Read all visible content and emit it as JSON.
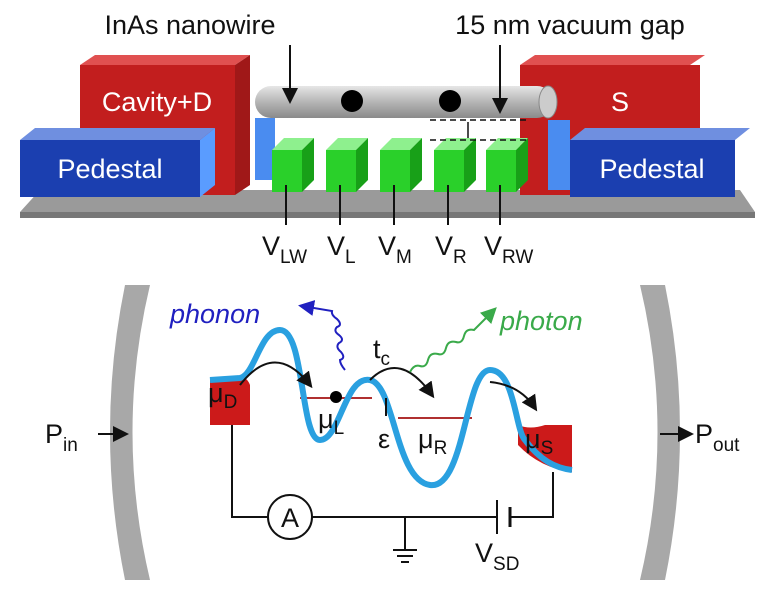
{
  "device": {
    "nanowire_label": "InAs nanowire",
    "gap_label": "15 nm vacuum gap",
    "left_contact": "Cavity+D",
    "right_contact": "S",
    "left_pedestal": "Pedestal",
    "right_pedestal": "Pedestal",
    "gates": [
      {
        "symbol": "V",
        "sub": "LW"
      },
      {
        "symbol": "V",
        "sub": "L"
      },
      {
        "symbol": "V",
        "sub": "M"
      },
      {
        "symbol": "V",
        "sub": "R"
      },
      {
        "symbol": "V",
        "sub": "RW"
      }
    ]
  },
  "circuit": {
    "phonon": "phonon",
    "photon": "photon",
    "tunnel": {
      "symbol": "t",
      "sub": "c"
    },
    "levels": [
      {
        "symbol": "μ",
        "sub": "D"
      },
      {
        "symbol": "μ",
        "sub": "L"
      },
      {
        "symbol": "μ",
        "sub": "R"
      },
      {
        "symbol": "μ",
        "sub": "S"
      }
    ],
    "detuning": "ε",
    "input": {
      "symbol": "P",
      "sub": "in"
    },
    "output": {
      "symbol": "P",
      "sub": "out"
    },
    "ammeter": "A",
    "bias": {
      "symbol": "V",
      "sub": "SD"
    }
  }
}
